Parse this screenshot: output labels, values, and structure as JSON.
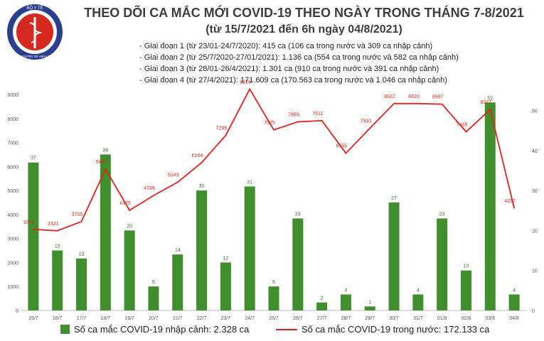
{
  "header": {
    "logo_text": "BỘ Y TẾ",
    "logo_caption": "MINISTRY OF HEALTH",
    "title": "THEO DÕI CA MẮC MỚI COVID-19 THEO NGÀY TRONG THÁNG 7-8/2021",
    "subtitle": "(từ 15/7/2021 đến 6h ngày 04/8/2021)"
  },
  "notes": [
    "Giai đoạn 1 (từ 23/01-24/7/2020): 415 ca (106 ca trong nước và 309 ca nhập cảnh)",
    "Giai đoạn 2 (từ 25/7/2020-27/01/2021): 1.136 ca (554 ca trong nước và 582 ca nhập cảnh)",
    "Giai đoạn 3 (từ 28/01-26/4/2021): 1.301 ca (910 ca trong nước và 391 ca nhập cảnh)",
    "Giai đoạn 4 (từ 27/4/2021): 171.609 ca (170.563 ca trong nước và 1.046 ca nhập cảnh)"
  ],
  "legend": {
    "bar_label": "Số ca mắc COVID-19 nhập cảnh: 2.328 ca",
    "line_label": "Số ca mắc COVID-19 trong nước: 172.133 ca"
  },
  "colors": {
    "bar": "#3f8f2c",
    "line": "#e8221b",
    "bar_label": "#2f7a1e",
    "line_label": "#e8221b",
    "axis_text": "#555555"
  },
  "chart_data": {
    "type": "bar",
    "categories": [
      "15/7",
      "16/7",
      "17/7",
      "18/7",
      "19/7",
      "20/7",
      "21/7",
      "22/7",
      "23/7",
      "24/7",
      "25/7",
      "26/7",
      "27/7",
      "28/7",
      "29/7",
      "30/7",
      "31/7",
      "01/8",
      "02/8",
      "03/8",
      "04/8"
    ],
    "series": [
      {
        "name": "Số ca mắc COVID-19 nhập cảnh: 2.328 ca",
        "type": "bar",
        "axis": "right",
        "values": [
          37,
          15,
          13,
          39,
          20,
          6,
          14,
          30,
          12,
          31,
          6,
          23,
          2,
          4,
          1,
          27,
          4,
          23,
          10,
          52,
          4
        ]
      },
      {
        "name": "Số ca mắc COVID-19 trong nước: 172.133 ca",
        "type": "line",
        "axis": "left",
        "values": [
          3379,
          3321,
          3705,
          5887,
          4175,
          4789,
          5343,
          6164,
          7295,
          9225,
          7525,
          7859,
          7911,
          6555,
          7593,
          8622,
          8620,
          8597,
          7445,
          8377,
          4267
        ]
      }
    ],
    "y_left": {
      "min": 0,
      "max": 9000,
      "ticks": [
        0,
        1000,
        2000,
        3000,
        4000,
        5000,
        6000,
        7000,
        8000,
        9000
      ]
    },
    "y_right": {
      "min": 0,
      "max": 54,
      "ticks": [
        0,
        10,
        20,
        30,
        40,
        50
      ]
    },
    "grid": false,
    "legend_position": "bottom"
  }
}
